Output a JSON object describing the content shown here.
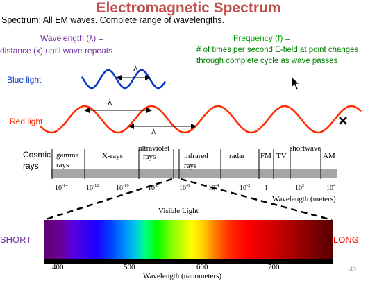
{
  "title": "Electromagnetic Spectrum",
  "subtitle": "Spectrum: All EM waves.  Complete range of wavelengths.",
  "wavelength_def": {
    "line1": "Wavelength (λ) =",
    "line2": "distance (x) until wave repeats"
  },
  "frequency_def": {
    "line1": "Frequency (f) =",
    "line2": "# of times per second E-field at point changes",
    "line3": "through complete cycle as wave passes"
  },
  "blue_label": "Blue light",
  "red_label": "Red light",
  "lambda": "λ",
  "em_bands": {
    "cosmic": "Cosmic",
    "cosmic2": "rays",
    "gamma1": "gamma",
    "gamma2": "rays",
    "xrays": "X-rays",
    "uv1": "ultraviolet",
    "uv2": "rays",
    "ir1": "infrared",
    "ir2": "rays",
    "radar": "radar",
    "fm": "FM",
    "tv": "TV",
    "shortwave": "shortwave",
    "am": "AM"
  },
  "em_ticks": [
    {
      "base": "10",
      "exp": "-14"
    },
    {
      "base": "10",
      "exp": "-12"
    },
    {
      "base": "10",
      "exp": "-10"
    },
    {
      "base": "10",
      "exp": "-8"
    },
    {
      "base": "10",
      "exp": "-6"
    },
    {
      "base": "10",
      "exp": "-4"
    },
    {
      "base": "10",
      "exp": "-2"
    },
    {
      "base": "1",
      "exp": ""
    },
    {
      "base": "10",
      "exp": "2"
    },
    {
      "base": "10",
      "exp": "4"
    }
  ],
  "em_axis_label": "Wavelength (meters)",
  "visible_label": "Visible Light",
  "short_label": "SHORT",
  "long_label": "LONG",
  "vis_ticks": [
    "400",
    "500",
    "600",
    "700"
  ],
  "vis_axis_label": "Wavelength (nanometers)",
  "page_number": "40",
  "colors": {
    "title": "#c0504d",
    "blue_wave": "#0033cc",
    "red_wave": "#ff2a00",
    "purple_text": "#7030a0",
    "green_text": "#008000"
  }
}
